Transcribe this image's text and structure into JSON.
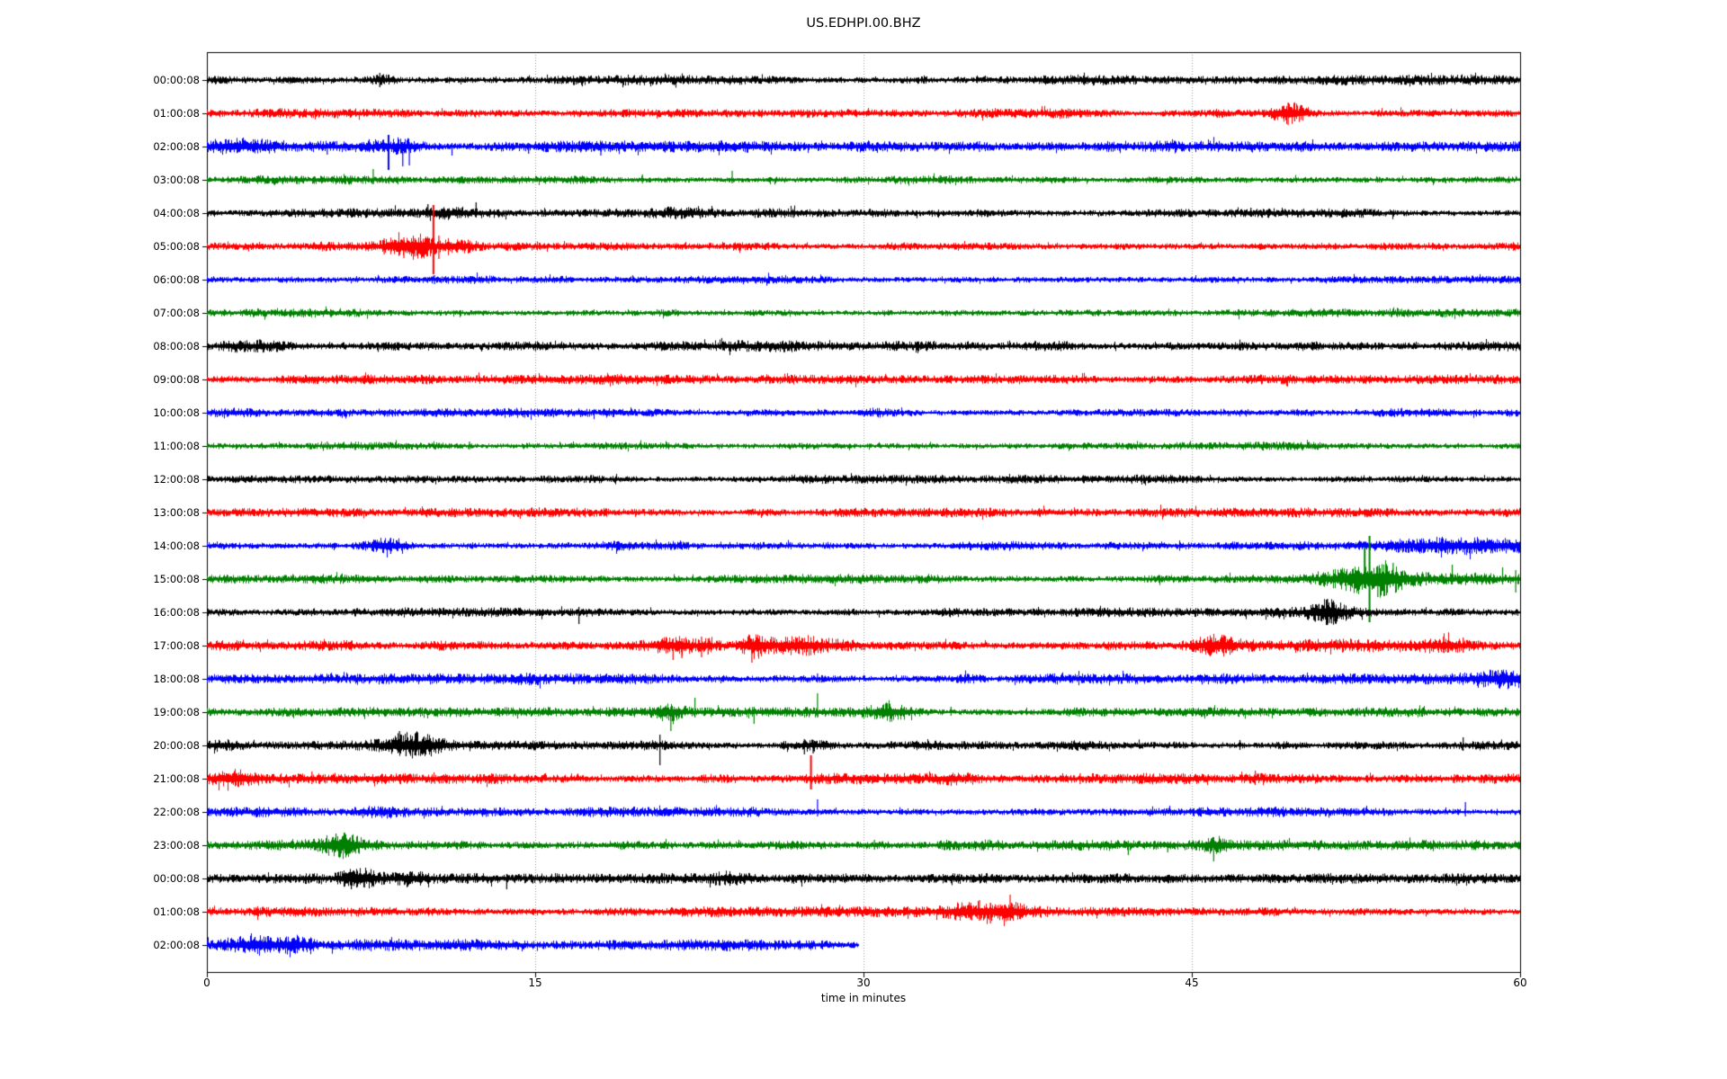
{
  "title": "US.EDHPI.00.BHZ",
  "chart_data": {
    "type": "line",
    "subtype": "helicorder-dayplot",
    "title": "US.EDHPI.00.BHZ",
    "xlabel": "time in minutes",
    "x_range": [
      0,
      60
    ],
    "x_ticks": [
      0,
      15,
      30,
      45,
      60
    ],
    "x_gridlines": [
      15,
      30,
      45
    ],
    "grid": "dotted-vertical",
    "trace_color_cycle": [
      "#000000",
      "#ff0000",
      "#0000ff",
      "#008000"
    ],
    "rows": [
      {
        "label": "00:00:08",
        "color": "#000000",
        "base": 3.9,
        "end_minute": 60,
        "bursts": [
          [
            7.9,
            1.0,
            3
          ],
          [
            22,
            2,
            1.5
          ]
        ],
        "spikes": [
          [
            7.9,
            8,
            8
          ]
        ]
      },
      {
        "label": "01:00:08",
        "color": "#ff0000",
        "base": 3.6,
        "end_minute": 60,
        "bursts": [
          [
            49.5,
            1.2,
            8
          ]
        ],
        "spikes": [
          [
            49.4,
            12,
            13
          ],
          [
            49.7,
            9,
            9
          ]
        ]
      },
      {
        "label": "02:00:08",
        "color": "#0000ff",
        "base": 4.2,
        "end_minute": 60,
        "bursts": [
          [
            1.2,
            2.5,
            2.5
          ],
          [
            8.8,
            1.8,
            3
          ]
        ],
        "spikes": [
          [
            5.5,
            4,
            9
          ],
          [
            8.3,
            13,
            26
          ],
          [
            8.95,
            5,
            22
          ],
          [
            9.25,
            5,
            21
          ],
          [
            11.2,
            4,
            10
          ],
          [
            14.7,
            4,
            8
          ],
          [
            18.0,
            4,
            10
          ],
          [
            35.3,
            6,
            6
          ]
        ]
      },
      {
        "label": "03:00:08",
        "color": "#008000",
        "base": 3.3,
        "end_minute": 60,
        "bursts": [],
        "spikes": [
          [
            7.6,
            12,
            5
          ],
          [
            19.9,
            6,
            4
          ],
          [
            24.0,
            10,
            4
          ],
          [
            33.5,
            5,
            4
          ],
          [
            44,
            4,
            3
          ]
        ]
      },
      {
        "label": "04:00:08",
        "color": "#000000",
        "base": 3.4,
        "end_minute": 60,
        "bursts": [
          [
            21.7,
            1.5,
            2
          ],
          [
            10.8,
            1.5,
            2
          ]
        ],
        "spikes": [
          [
            10.1,
            10,
            5
          ],
          [
            12.3,
            12,
            5
          ],
          [
            47.7,
            6,
            4
          ]
        ]
      },
      {
        "label": "05:00:08",
        "color": "#ff0000",
        "base": 3.5,
        "end_minute": 60,
        "bursts": [
          [
            9.3,
            1.6,
            8
          ],
          [
            11.3,
            1.5,
            4
          ]
        ],
        "spikes": [
          [
            8.1,
            9,
            9
          ],
          [
            9.0,
            10,
            13
          ],
          [
            9.5,
            9,
            11
          ],
          [
            10.35,
            46,
            31
          ],
          [
            10.6,
            12,
            14
          ]
        ]
      },
      {
        "label": "06:00:08",
        "color": "#0000ff",
        "base": 3.3,
        "end_minute": 60,
        "bursts": [],
        "spikes": [
          [
            10.4,
            5,
            5
          ]
        ]
      },
      {
        "label": "07:00:08",
        "color": "#008000",
        "base": 3.3,
        "end_minute": 60,
        "bursts": [
          [
            21,
            1,
            1.5
          ]
        ],
        "spikes": []
      },
      {
        "label": "08:00:08",
        "color": "#000000",
        "base": 4.4,
        "end_minute": 60,
        "bursts": [
          [
            2.5,
            2,
            1.5
          ]
        ],
        "spikes": []
      },
      {
        "label": "09:00:08",
        "color": "#ff0000",
        "base": 3.5,
        "end_minute": 60,
        "bursts": [
          [
            18.5,
            1,
            1.5
          ]
        ],
        "spikes": []
      },
      {
        "label": "10:00:08",
        "color": "#0000ff",
        "base": 3.5,
        "end_minute": 60,
        "bursts": [
          [
            31,
            1.5,
            2
          ]
        ],
        "spikes": []
      },
      {
        "label": "11:00:08",
        "color": "#008000",
        "base": 3.3,
        "end_minute": 60,
        "bursts": [],
        "spikes": [
          [
            5.5,
            5,
            4
          ],
          [
            12,
            5,
            4
          ]
        ]
      },
      {
        "label": "12:00:08",
        "color": "#000000",
        "base": 3.3,
        "end_minute": 60,
        "bursts": [],
        "spikes": []
      },
      {
        "label": "13:00:08",
        "color": "#ff0000",
        "base": 3.5,
        "end_minute": 60,
        "bursts": [],
        "spikes": []
      },
      {
        "label": "14:00:08",
        "color": "#0000ff",
        "base": 3.7,
        "end_minute": 60,
        "bursts": [
          [
            8.2,
            1.4,
            5
          ],
          [
            57.5,
            4,
            3.5
          ]
        ],
        "spikes": [
          [
            8.4,
            9,
            9
          ]
        ]
      },
      {
        "label": "15:00:08",
        "color": "#008000",
        "base": 3.7,
        "end_minute": 60,
        "bursts": [
          [
            53.2,
            2.2,
            9
          ],
          [
            56.5,
            6,
            3
          ],
          [
            44,
            2,
            1.5
          ]
        ],
        "spikes": [
          [
            52.9,
            35,
            10
          ],
          [
            53.12,
            48,
            48
          ],
          [
            53.5,
            14,
            20
          ],
          [
            54.2,
            18,
            8
          ],
          [
            56.9,
            16,
            6
          ],
          [
            59.2,
            13,
            6
          ],
          [
            59.8,
            10,
            15
          ]
        ]
      },
      {
        "label": "16:00:08",
        "color": "#000000",
        "base": 3.6,
        "end_minute": 60,
        "bursts": [
          [
            51.2,
            1.2,
            6
          ]
        ],
        "spikes": [
          [
            17.0,
            6,
            13
          ],
          [
            35.5,
            5,
            4
          ],
          [
            50.8,
            9,
            9
          ],
          [
            51.2,
            15,
            14
          ],
          [
            51.5,
            11,
            10
          ]
        ]
      },
      {
        "label": "17:00:08",
        "color": "#ff0000",
        "base": 3.9,
        "end_minute": 60,
        "bursts": [
          [
            21.5,
            1.3,
            6
          ],
          [
            22.8,
            0.9,
            5
          ],
          [
            25.0,
            0.9,
            7
          ],
          [
            27.3,
            2.2,
            4
          ],
          [
            46.1,
            1.2,
            5
          ],
          [
            57.0,
            2.0,
            5
          ],
          [
            50.5,
            5,
            1.5
          ]
        ],
        "spikes": [
          [
            21.3,
            8,
            16
          ],
          [
            21.7,
            8,
            14
          ],
          [
            22.6,
            10,
            13
          ],
          [
            22.9,
            8,
            10
          ],
          [
            24.9,
            7,
            19
          ],
          [
            25.2,
            6,
            12
          ],
          [
            45.9,
            9,
            8
          ],
          [
            56.5,
            10,
            8
          ],
          [
            57.4,
            9,
            8
          ]
        ]
      },
      {
        "label": "18:00:08",
        "color": "#0000ff",
        "base": 3.9,
        "end_minute": 60,
        "bursts": [
          [
            14.7,
            1,
            2.5
          ],
          [
            34.7,
            1,
            3
          ],
          [
            59,
            2.5,
            4
          ]
        ],
        "spikes": [
          [
            12.2,
            5,
            4
          ],
          [
            27.9,
            6,
            4
          ]
        ]
      },
      {
        "label": "19:00:08",
        "color": "#008000",
        "base": 3.7,
        "end_minute": 60,
        "bursts": [
          [
            21.2,
            0.8,
            3
          ],
          [
            31.2,
            1.5,
            5
          ]
        ],
        "spikes": [
          [
            21.2,
            6,
            21
          ],
          [
            22.3,
            16,
            6
          ],
          [
            25.0,
            6,
            13
          ],
          [
            27.9,
            21,
            6
          ],
          [
            31.1,
            10,
            5
          ],
          [
            34.0,
            6,
            4
          ]
        ]
      },
      {
        "label": "20:00:08",
        "color": "#000000",
        "base": 3.7,
        "end_minute": 60,
        "bursts": [
          [
            0.8,
            1.2,
            3
          ],
          [
            9.5,
            1.8,
            6
          ],
          [
            27.5,
            1.5,
            4
          ]
        ],
        "spikes": [
          [
            8.8,
            16,
            6
          ],
          [
            9.1,
            6,
            12
          ],
          [
            9.5,
            7,
            11
          ],
          [
            9.9,
            6,
            9
          ],
          [
            20.7,
            12,
            22
          ],
          [
            27.3,
            7,
            10
          ],
          [
            27.7,
            6,
            9
          ],
          [
            47.2,
            6,
            5
          ],
          [
            57.4,
            9,
            6
          ]
        ]
      },
      {
        "label": "21:00:08",
        "color": "#ff0000",
        "base": 4.0,
        "end_minute": 60,
        "bursts": [
          [
            1.2,
            1.8,
            3.5
          ],
          [
            34.5,
            1.8,
            2.5
          ]
        ],
        "spikes": [
          [
            4.8,
            8,
            6
          ],
          [
            27.6,
            26,
            12
          ],
          [
            39.9,
            6,
            6
          ],
          [
            47.9,
            9,
            7
          ],
          [
            57.0,
            5,
            5
          ]
        ]
      },
      {
        "label": "22:00:08",
        "color": "#0000ff",
        "base": 3.7,
        "end_minute": 60,
        "bursts": [
          [
            8,
            1.5,
            2.5
          ]
        ],
        "spikes": [
          [
            21.0,
            5,
            4
          ],
          [
            27.9,
            14,
            5
          ],
          [
            57.5,
            11,
            5
          ]
        ]
      },
      {
        "label": "23:00:08",
        "color": "#008000",
        "base": 3.9,
        "end_minute": 60,
        "bursts": [
          [
            6.1,
            1.3,
            6
          ],
          [
            35,
            2,
            2.5
          ],
          [
            46,
            0.9,
            3
          ]
        ],
        "spikes": [
          [
            5.9,
            13,
            6
          ],
          [
            6.3,
            10,
            7
          ],
          [
            30.5,
            6,
            5
          ],
          [
            42.1,
            5,
            11
          ],
          [
            43.9,
            4,
            8
          ],
          [
            46.0,
            9,
            18
          ]
        ]
      },
      {
        "label": "00:00:08",
        "color": "#000000",
        "base": 3.8,
        "end_minute": 60,
        "bursts": [
          [
            6.9,
            1.4,
            6
          ],
          [
            9.3,
            1.1,
            3.5
          ],
          [
            23.5,
            1.5,
            2
          ]
        ],
        "spikes": [
          [
            6.6,
            7,
            12
          ],
          [
            7.2,
            6,
            10
          ],
          [
            9.3,
            8,
            6
          ],
          [
            13.7,
            5,
            12
          ]
        ]
      },
      {
        "label": "01:00:08",
        "color": "#ff0000",
        "base": 3.9,
        "end_minute": 60,
        "bursts": [
          [
            35.2,
            1.6,
            7
          ],
          [
            36.7,
            0.9,
            7
          ],
          [
            37.8,
            1.5,
            3
          ]
        ],
        "spikes": [
          [
            34.5,
            8,
            6
          ],
          [
            34.9,
            10,
            9
          ],
          [
            35.3,
            13,
            10
          ],
          [
            35.8,
            10,
            13
          ],
          [
            36.7,
            19,
            10
          ]
        ]
      },
      {
        "label": "02:00:08",
        "color": "#0000ff",
        "base": 4.4,
        "end_minute": 29.8,
        "bursts": [
          [
            2.3,
            1.7,
            5
          ],
          [
            4.1,
            1.1,
            3
          ]
        ],
        "spikes": [
          [
            2.2,
            9,
            8
          ]
        ]
      }
    ]
  }
}
